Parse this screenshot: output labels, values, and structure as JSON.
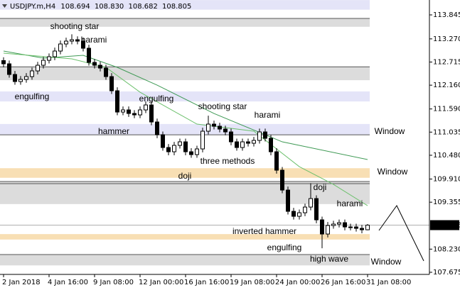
{
  "chart_data": {
    "type": "candlestick",
    "title": "USDJPY.m,H4",
    "header_values": [
      "108.694",
      "108.830",
      "108.682",
      "108.805"
    ],
    "categories": [
      "2 Jan 2018",
      null,
      null,
      null,
      null,
      null,
      null,
      null,
      "4 Jan 16:00",
      null,
      null,
      null,
      null,
      null,
      null,
      null,
      "9 Jan 08:00",
      null,
      null,
      null,
      null,
      null,
      null,
      null,
      "12 Jan 00:00",
      null,
      null,
      null,
      null,
      null,
      null,
      null,
      "16 Jan 16:00",
      null,
      null,
      null,
      null,
      null,
      null,
      null,
      "19 Jan 08:00",
      null,
      null,
      null,
      null,
      null,
      null,
      null,
      "24 Jan 00:00",
      null,
      null,
      null,
      null,
      null,
      null,
      null,
      "26 Jan 16:00",
      null,
      null,
      null,
      null,
      null,
      null,
      null,
      "31 Jan 08:00"
    ],
    "open": [
      112.75,
      112.672,
      112.417,
      112.247,
      112.298,
      112.366,
      112.502,
      112.638,
      112.757,
      112.842,
      112.978,
      113.148,
      113.216,
      113.25,
      113.216,
      113.046,
      112.706,
      112.638,
      112.57,
      112.366,
      112.026,
      111.516,
      111.567,
      111.482,
      111.448,
      111.567,
      111.686,
      111.278,
      110.972,
      110.666,
      110.564,
      110.717,
      110.802,
      110.564,
      110.496,
      110.632,
      111.057,
      111.227,
      111.176,
      111.108,
      111.04,
      110.802,
      110.666,
      110.802,
      110.768,
      110.836,
      111.04,
      110.887,
      110.564,
      110.122,
      109.646,
      109.136,
      109.017,
      109.102,
      109.238,
      109.442,
      108.932,
      108.592,
      108.796,
      108.83,
      108.864,
      108.762,
      108.762,
      108.728,
      108.694
    ],
    "high": [
      112.83,
      112.75,
      112.5,
      112.38,
      112.45,
      112.58,
      112.72,
      112.84,
      112.92,
      113.06,
      113.23,
      113.3,
      113.38,
      113.33,
      113.3,
      113.13,
      112.79,
      112.72,
      112.65,
      112.45,
      112.11,
      111.65,
      111.65,
      111.56,
      111.65,
      111.77,
      111.77,
      111.36,
      111.05,
      110.75,
      110.8,
      110.88,
      110.88,
      110.65,
      110.71,
      111.14,
      111.43,
      111.31,
      111.26,
      111.19,
      111.12,
      110.88,
      110.88,
      110.88,
      110.92,
      111.12,
      111.12,
      110.97,
      110.65,
      110.2,
      109.73,
      109.22,
      109.18,
      109.32,
      109.81,
      109.52,
      109.01,
      108.88,
      108.91,
      108.94,
      108.94,
      108.84,
      108.84,
      108.81,
      108.83
    ],
    "low": [
      112.59,
      112.34,
      112.17,
      112.17,
      112.22,
      112.29,
      112.42,
      112.56,
      112.68,
      112.76,
      112.9,
      113.07,
      113.14,
      113.14,
      112.97,
      112.63,
      112.56,
      112.49,
      112.29,
      111.95,
      111.44,
      111.44,
      111.4,
      111.37,
      111.37,
      111.49,
      111.2,
      110.89,
      110.59,
      110.48,
      110.48,
      110.64,
      110.48,
      110.42,
      110.42,
      110.55,
      110.98,
      111.1,
      111.03,
      110.96,
      110.72,
      110.59,
      110.59,
      110.69,
      110.69,
      110.76,
      110.81,
      110.48,
      110.04,
      109.57,
      109.06,
      108.94,
      108.94,
      109.02,
      109.16,
      108.85,
      108.25,
      108.51,
      108.72,
      108.75,
      108.68,
      108.68,
      108.65,
      108.61,
      108.682
    ],
    "close": [
      112.672,
      112.417,
      112.247,
      112.298,
      112.366,
      112.502,
      112.638,
      112.757,
      112.842,
      112.978,
      113.148,
      113.216,
      113.25,
      113.216,
      113.046,
      112.706,
      112.638,
      112.57,
      112.366,
      112.026,
      111.516,
      111.567,
      111.482,
      111.448,
      111.567,
      111.686,
      111.278,
      110.972,
      110.666,
      110.564,
      110.717,
      110.802,
      110.564,
      110.496,
      110.632,
      111.057,
      111.227,
      111.176,
      111.108,
      111.04,
      110.802,
      110.666,
      110.802,
      110.768,
      110.836,
      111.04,
      110.887,
      110.564,
      110.122,
      109.646,
      109.136,
      109.017,
      109.102,
      109.238,
      109.442,
      108.932,
      108.592,
      108.796,
      108.83,
      108.864,
      108.762,
      108.762,
      108.728,
      108.694,
      108.805
    ],
    "colors": {
      "up": "#ffffff",
      "down": "#000000",
      "outline": "#000000"
    },
    "ylim": [
      107.624,
      114.202
    ],
    "yticks": [
      113.845,
      {
        "value": 113.27,
        "label": "113.270"
      },
      112.715,
      {
        "value": 112.16,
        "label": "112.160"
      },
      {
        "value": 111.59,
        "label": "111.590"
      },
      111.035,
      {
        "value": 110.48,
        "label": "110.480"
      },
      {
        "value": 109.91,
        "label": "109.910"
      },
      109.355,
      {
        "value": 108.23,
        "label": "108.230"
      },
      107.675
    ],
    "lines": [
      {
        "color": "#3f9a55",
        "x": [
          0,
          7,
          14,
          20,
          27,
          37,
          49,
          64
        ],
        "values": [
          112.978,
          112.808,
          112.876,
          112.587,
          112.162,
          111.482,
          110.802,
          110.377
        ]
      },
      {
        "color": "#6cc06c",
        "x": [
          0,
          12,
          18,
          24,
          34,
          44,
          52,
          58,
          64
        ],
        "values": [
          112.927,
          112.791,
          112.587,
          111.992,
          111.227,
          111.057,
          110.207,
          109.782,
          109.272
        ]
      }
    ],
    "zones": [
      {
        "from": 113.97,
        "to": 114.2,
        "color": "#e4e4f8"
      },
      {
        "from": 113.56,
        "to": 113.76,
        "color": "#dcdcdc"
      },
      {
        "from": 112.28,
        "to": 112.6,
        "color": "#dcdcdc"
      },
      {
        "from": 111.77,
        "to": 112.01,
        "color": "#e4e4f8"
      },
      {
        "from": 110.97,
        "to": 111.23,
        "color": "#e4e4f8"
      },
      {
        "from": 109.94,
        "to": 110.17,
        "color": "#f8dfb4"
      },
      {
        "from": 109.31,
        "to": 109.85,
        "color": "#dcdcdc"
      },
      {
        "from": 108.46,
        "to": 108.59,
        "color": "#f8dfb4"
      },
      {
        "from": 107.84,
        "to": 108.1,
        "color": "#dcdcdc"
      }
    ],
    "levels": [
      {
        "value": 113.76,
        "color": "#555555"
      },
      {
        "value": 112.6,
        "color": "#555555"
      },
      {
        "value": 110.97,
        "color": "#555555"
      },
      {
        "value": 109.85,
        "color": "#555555"
      },
      {
        "value": 109.8,
        "color": "#555555"
      },
      {
        "value": 108.1,
        "color": "#555555"
      }
    ],
    "annotations": [
      {
        "text": "shooting star",
        "color": "#7f7f7f"
      },
      {
        "text": "harami",
        "color": "#7f7f7f"
      },
      {
        "text": "engulfing",
        "color": "#7f7f7f"
      },
      {
        "text": "engulfing",
        "color": "#7f7f7f"
      },
      {
        "text": "shooting star",
        "color": "#7f7f7f"
      },
      {
        "text": "harami",
        "color": "#7f7f7f"
      },
      {
        "text": "hammer",
        "color": "#7f7f7f"
      },
      {
        "text": "three methods",
        "color": "#7f7f7f"
      },
      {
        "text": "doji",
        "color": "#7f7f7f"
      },
      {
        "text": "doji",
        "color": "#7f7f7f"
      },
      {
        "text": "harami",
        "color": "#7f7f7f"
      },
      {
        "text": "inverted hammer",
        "color": "#7f7f7f"
      },
      {
        "text": "engulfing",
        "color": "#7f7f7f"
      },
      {
        "text": "high wave",
        "color": "#7f7f7f"
      },
      {
        "text": "Window",
        "color": "#8493ad"
      },
      {
        "text": "Window",
        "color": "#e0a030"
      },
      {
        "text": "Window",
        "color": "#8493ad"
      }
    ]
  }
}
